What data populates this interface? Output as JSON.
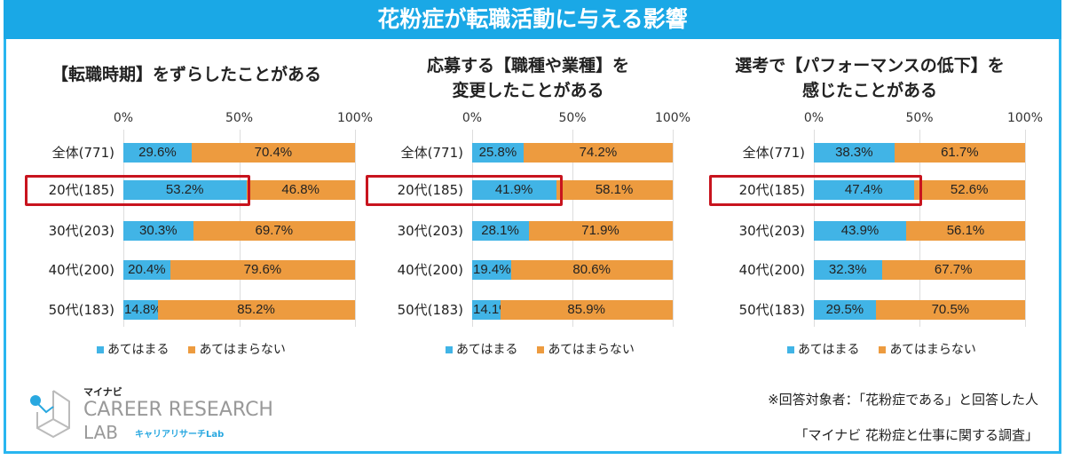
{
  "title": "花粉症が転職活動に与える影響",
  "colors": {
    "yes": "#41b4e6",
    "no": "#ed9b3f",
    "highlight": "#c8141e"
  },
  "chart_data": [
    {
      "type": "bar",
      "stacked": true,
      "orientation": "horizontal",
      "title": "【転職時期】をずらしたことがある",
      "categories": [
        "全体(771)",
        "20代(185)",
        "30代(203)",
        "40代(200)",
        "50代(183)"
      ],
      "series": [
        {
          "name": "あてはまる",
          "values": [
            29.6,
            53.2,
            30.3,
            20.4,
            14.8
          ]
        },
        {
          "name": "あてはまらない",
          "values": [
            70.4,
            46.8,
            69.7,
            79.6,
            85.2
          ]
        }
      ],
      "ticks": [
        "0%",
        "50%",
        "100%"
      ],
      "xlim": [
        0,
        100
      ],
      "highlight": "20代(185)"
    },
    {
      "type": "bar",
      "stacked": true,
      "orientation": "horizontal",
      "title": "応募する【職種や業種】を\n変更したことがある",
      "categories": [
        "全体(771)",
        "20代(185)",
        "30代(203)",
        "40代(200)",
        "50代(183)"
      ],
      "series": [
        {
          "name": "あてはまる",
          "values": [
            25.8,
            41.9,
            28.1,
            19.4,
            14.1
          ]
        },
        {
          "name": "あてはまらない",
          "values": [
            74.2,
            58.1,
            71.9,
            80.6,
            85.9
          ]
        }
      ],
      "ticks": [
        "0%",
        "50%",
        "100%"
      ],
      "xlim": [
        0,
        100
      ],
      "highlight": "20代(185)"
    },
    {
      "type": "bar",
      "stacked": true,
      "orientation": "horizontal",
      "title": "選考で【パフォーマンスの低下】を\n感じたことがある",
      "categories": [
        "全体(771)",
        "20代(185)",
        "30代(203)",
        "40代(200)",
        "50代(183)"
      ],
      "series": [
        {
          "name": "あてはまる",
          "values": [
            38.3,
            47.4,
            43.9,
            32.3,
            29.5
          ]
        },
        {
          "name": "あてはまらない",
          "values": [
            61.7,
            52.6,
            56.1,
            67.7,
            70.5
          ]
        }
      ],
      "ticks": [
        "0%",
        "50%",
        "100%"
      ],
      "xlim": [
        0,
        100
      ],
      "highlight": "20代(185)"
    }
  ],
  "notes": {
    "respondents": "※回答対象者：「花粉症である」と回答した人",
    "survey": "「マイナビ 花粉症と仕事に関する調査」"
  },
  "logo": {
    "top": "マイナビ",
    "main": "CAREER RESEARCH",
    "lab": "LAB",
    "sub": "キャリアリサーチLab"
  }
}
